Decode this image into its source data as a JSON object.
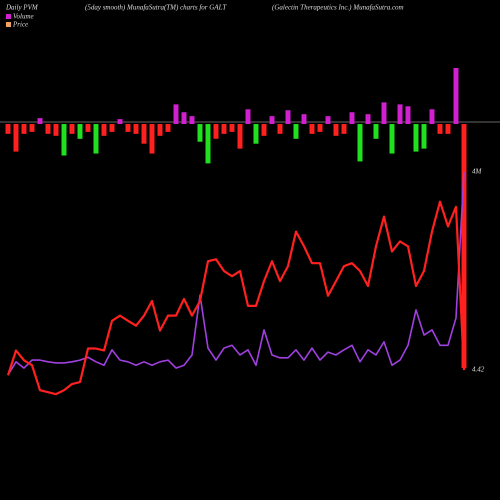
{
  "chart_data": {
    "type": "line",
    "title": "(5day smooth) MunafaSutra(TM) charts for GALT",
    "subtitle": "(Galectin Therapeutics Inc.) MunafaSutra.com",
    "label": "Daily PVM",
    "background": "#000000",
    "bars": {
      "ylim": [
        -250,
        60
      ],
      "values": [
        -10,
        -28,
        -10,
        -8,
        6,
        -10,
        -12,
        -32,
        -10,
        -15,
        -8,
        -30,
        -12,
        -8,
        5,
        -8,
        -10,
        -20,
        -30,
        -12,
        -8,
        20,
        12,
        8,
        -18,
        -40,
        -15,
        -10,
        -8,
        -25,
        15,
        -20,
        -12,
        8,
        -10,
        14,
        -15,
        10,
        -10,
        -8,
        8,
        -12,
        -10,
        12,
        -38,
        10,
        -15,
        22,
        -30,
        20,
        18,
        -28,
        -25,
        15,
        -10,
        -10,
        57,
        -248
      ],
      "colors": [
        "#ff2020",
        "#ff2020",
        "#ff2020",
        "#ff2020",
        "#d020d0",
        "#ff2020",
        "#ff2020",
        "#20e020",
        "#ff2020",
        "#20e020",
        "#ff2020",
        "#20e020",
        "#ff2020",
        "#ff2020",
        "#d020d0",
        "#ff2020",
        "#ff2020",
        "#ff2020",
        "#ff2020",
        "#ff2020",
        "#ff2020",
        "#d020d0",
        "#d020d0",
        "#d020d0",
        "#20e020",
        "#20e020",
        "#ff2020",
        "#ff2020",
        "#ff2020",
        "#ff2020",
        "#d020d0",
        "#20e020",
        "#ff2020",
        "#d020d0",
        "#ff2020",
        "#d020d0",
        "#20e020",
        "#d020d0",
        "#ff2020",
        "#ff2020",
        "#d020d0",
        "#ff2020",
        "#ff2020",
        "#d020d0",
        "#20e020",
        "#d020d0",
        "#20e020",
        "#d020d0",
        "#20e020",
        "#d020d0",
        "#d020d0",
        "#20e020",
        "#20e020",
        "#d020d0",
        "#ff2020",
        "#ff2020",
        "#d020d0",
        "#ff2020"
      ]
    },
    "series": [
      {
        "name": "Volume",
        "color": "#a040e0",
        "legend_color": "#d020d0",
        "ylim": [
          0,
          4000000
        ],
        "end_label": "4M",
        "values": [
          440000,
          670000,
          560000,
          700000,
          700000,
          670000,
          650000,
          650000,
          670000,
          700000,
          750000,
          670000,
          610000,
          880000,
          700000,
          670000,
          610000,
          670000,
          610000,
          670000,
          700000,
          560000,
          610000,
          790000,
          1840000,
          910000,
          700000,
          910000,
          960000,
          790000,
          880000,
          610000,
          1230000,
          790000,
          740000,
          740000,
          880000,
          700000,
          910000,
          700000,
          840000,
          790000,
          880000,
          960000,
          670000,
          880000,
          790000,
          1020000,
          610000,
          700000,
          960000,
          1580000,
          1140000,
          1230000,
          960000,
          960000,
          1440000,
          4000000
        ]
      },
      {
        "name": "Price",
        "color": "#ff2020",
        "legend_color": "#f0a060",
        "ylim": [
          3.5,
          10.5
        ],
        "end_label": "4.42",
        "values": [
          4.26,
          5.02,
          4.72,
          4.57,
          3.8,
          3.74,
          3.68,
          3.8,
          3.99,
          4.05,
          5.08,
          5.08,
          5.02,
          5.93,
          6.09,
          5.93,
          5.78,
          6.09,
          6.54,
          5.63,
          6.09,
          6.09,
          6.6,
          6.09,
          6.54,
          7.76,
          7.82,
          7.46,
          7.3,
          7.46,
          6.39,
          6.39,
          7.15,
          7.76,
          7.15,
          7.61,
          8.67,
          8.22,
          7.7,
          7.7,
          6.7,
          7.15,
          7.61,
          7.7,
          7.46,
          7,
          8.22,
          9.13,
          8.06,
          8.37,
          8.22,
          7,
          7.46,
          8.67,
          9.59,
          8.83,
          9.43,
          4.42
        ]
      }
    ]
  }
}
